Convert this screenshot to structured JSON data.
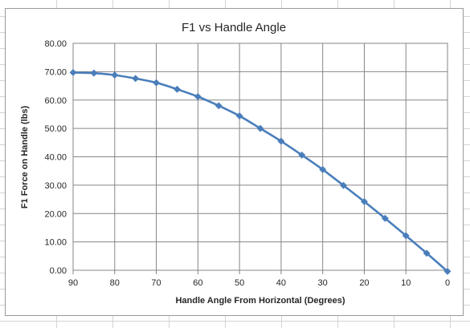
{
  "chart_data": {
    "type": "line",
    "title": "F1 vs Handle Angle",
    "xlabel": "Handle Angle From Horizontal (Degrees)",
    "ylabel": "F1 Force on Handle (lbs)",
    "x": [
      90,
      85,
      80,
      75,
      70,
      65,
      60,
      55,
      50,
      45,
      40,
      35,
      30,
      25,
      20,
      15,
      10,
      5,
      0
    ],
    "xlim": [
      90,
      0
    ],
    "x_reversed": true,
    "x_ticks": [
      90,
      80,
      70,
      60,
      50,
      40,
      30,
      20,
      10,
      0
    ],
    "ylim": [
      0,
      80
    ],
    "y_ticks": [
      "0.00",
      "10.00",
      "20.00",
      "30.00",
      "40.00",
      "50.00",
      "60.00",
      "70.00",
      "80.00"
    ],
    "grid": true,
    "legend": "none",
    "series": [
      {
        "color": "#4a7ebb",
        "marker": "diamond",
        "values": [
          69.7,
          69.5,
          68.8,
          67.6,
          66.1,
          63.8,
          61.2,
          58.0,
          54.4,
          50.0,
          45.5,
          40.6,
          35.5,
          29.9,
          24.2,
          18.3,
          12.2,
          6.0,
          -0.4
        ]
      }
    ]
  }
}
